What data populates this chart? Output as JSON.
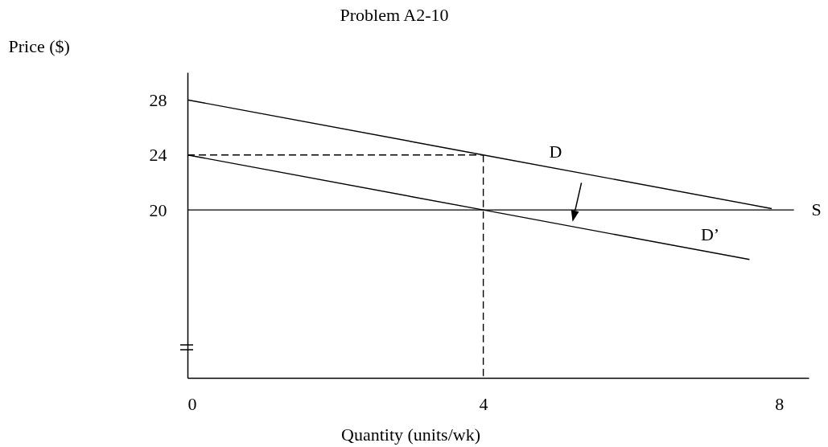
{
  "chart_data": {
    "type": "line",
    "title": "Problem A2-10",
    "xlabel": "Quantity (units/wk)",
    "ylabel": "Price ($)",
    "xlim": [
      0,
      8.4
    ],
    "ylim": [
      7.8,
      30
    ],
    "xticks": [
      0,
      4,
      8
    ],
    "yticks": [
      20,
      24,
      28
    ],
    "grid": false,
    "marker": "none",
    "series": [
      {
        "color": "#000000",
        "x": [
          0,
          4,
          7.9
        ],
        "values": [
          28,
          24,
          20.1
        ],
        "line_style": "solid"
      },
      {
        "color": "#000000",
        "x": [
          0,
          4,
          7.6
        ],
        "values": [
          24,
          20,
          16.4
        ],
        "line_style": "solid"
      },
      {
        "color": "#000000",
        "x": [
          0,
          8.2
        ],
        "values": [
          20,
          20
        ],
        "line_style": "solid"
      },
      {
        "color": "#000000",
        "x": [
          0,
          4
        ],
        "values": [
          24,
          24
        ],
        "line_style": "dashed"
      },
      {
        "color": "#000000",
        "x": [
          4,
          4
        ],
        "values": [
          24,
          7.8
        ],
        "line_style": "dashed"
      }
    ],
    "annotations": [
      "D",
      "D’",
      "S"
    ]
  }
}
